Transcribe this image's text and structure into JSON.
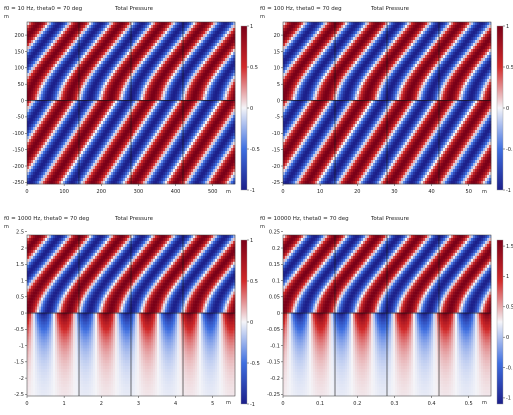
{
  "panel_titles": [
    "f0 = 10 Hz, theta0 = 70 deg",
    "f0 = 100 Hz, theta0 = 70 deg",
    "f0 = 1000 Hz, theta0 = 70 deg",
    "f0 = 10000 Hz, theta0 = 70 deg"
  ],
  "colors": {
    "low": "#1c1f8a",
    "mid_low": "#3f6fe0",
    "mid": "#f4f4f8",
    "mid_high": "#d12a2a",
    "high": "#7a0018",
    "axis": "#222222"
  },
  "chart_data": [
    {
      "type": "heatmap",
      "title": "Total Pressure",
      "subtitle": "f0 = 10 Hz, theta0 = 70 deg",
      "x_unit": "m",
      "y_unit": "m",
      "xlim": [
        0,
        560
      ],
      "ylim": [
        -255,
        240
      ],
      "xticks": [
        0,
        100,
        200,
        300,
        400,
        500
      ],
      "yticks": [
        -250,
        -200,
        -150,
        -100,
        -50,
        0,
        50,
        100,
        150,
        200
      ],
      "colorbar_ticks": [
        -1,
        -0.5,
        0,
        0.5,
        1
      ],
      "colorbar_range": [
        -1,
        1
      ],
      "colorbar_tick_labels": [
        "-1",
        "-0.5",
        "0",
        "0.5",
        "1"
      ],
      "periods_x": 5.0,
      "interface_y": 0,
      "cell_boundaries_x": [
        140,
        280,
        420
      ],
      "decay_below": false
    },
    {
      "type": "heatmap",
      "title": "Total Pressure",
      "subtitle": "f0 = 100 Hz, theta0 = 70 deg",
      "x_unit": "m",
      "y_unit": "m",
      "xlim": [
        0,
        56
      ],
      "ylim": [
        -25.5,
        24
      ],
      "xticks": [
        0,
        10,
        20,
        30,
        40,
        50
      ],
      "yticks": [
        -25,
        -20,
        -15,
        -10,
        -5,
        0,
        5,
        10,
        15,
        20
      ],
      "colorbar_ticks": [
        -1,
        -0.5,
        0,
        0.5,
        1
      ],
      "colorbar_range": [
        -1,
        1
      ],
      "colorbar_tick_labels": [
        "-1",
        "-0.5",
        "0",
        "0.5",
        "1"
      ],
      "periods_x": 5.0,
      "interface_y": 0,
      "cell_boundaries_x": [
        14,
        28,
        42
      ],
      "decay_below": false
    },
    {
      "type": "heatmap",
      "title": "Total Pressure",
      "subtitle": "f0 = 1000 Hz, theta0 = 70 deg",
      "x_unit": "m",
      "y_unit": "m",
      "xlim": [
        0,
        5.6
      ],
      "ylim": [
        -2.55,
        2.4
      ],
      "xticks": [
        0,
        1,
        2,
        3,
        4,
        5
      ],
      "yticks": [
        -2.5,
        -2,
        -1.5,
        -1,
        -0.5,
        0,
        0.5,
        1,
        1.5,
        2,
        2.5
      ],
      "colorbar_ticks": [
        -1,
        -0.5,
        0,
        0.5,
        1
      ],
      "colorbar_range": [
        -1,
        1
      ],
      "colorbar_tick_labels": [
        "-1",
        "-0.5",
        "0",
        "0.5",
        "1"
      ],
      "periods_x": 5.0,
      "interface_y": 0,
      "cell_boundaries_x": [
        1.4,
        2.8,
        4.2
      ],
      "decay_below": true
    },
    {
      "type": "heatmap",
      "title": "Total Pressure",
      "subtitle": "f0 = 10000 Hz, theta0 = 70 deg",
      "x_unit": "m",
      "y_unit": "m",
      "xlim": [
        0,
        0.56
      ],
      "ylim": [
        -0.255,
        0.24
      ],
      "xticks": [
        0,
        0.1,
        0.2,
        0.3,
        0.4,
        0.5
      ],
      "yticks": [
        -0.25,
        -0.2,
        -0.15,
        -0.1,
        -0.05,
        0,
        0.05,
        0.1,
        0.15,
        0.2,
        0.25
      ],
      "colorbar_ticks": [
        -1,
        -0.5,
        0,
        0.5,
        1,
        1.5
      ],
      "colorbar_range": [
        -1.1,
        1.6
      ],
      "colorbar_tick_labels": [
        "-1",
        "-0.5",
        "0",
        "0.5",
        "1",
        "1.5"
      ],
      "periods_x": 5.0,
      "interface_y": 0,
      "cell_boundaries_x": [
        0.14,
        0.28,
        0.42
      ],
      "decay_below": true
    }
  ]
}
